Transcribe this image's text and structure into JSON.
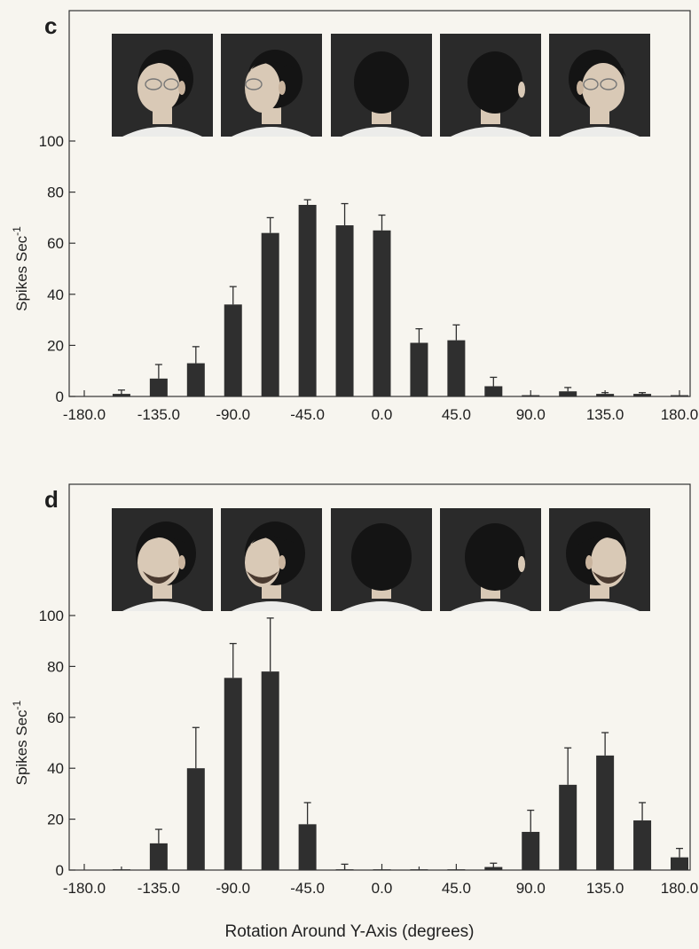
{
  "figure": {
    "xlabel": "Rotation Around Y-Axis (degrees)",
    "colors": {
      "background": "#f7f5ef",
      "bar": "#2f2f2f",
      "axis": "#333333",
      "text": "#1e1e1e",
      "photo_bg": "#2a2a2a",
      "skin": "#d9c9b6",
      "hair": "#141414",
      "shirt": "#ececea"
    }
  },
  "chart_data": [
    {
      "panel_label": "c",
      "type": "bar",
      "ylabel": "Spikes Sec",
      "ylabel_superscript": "-1",
      "ylim": [
        0,
        100
      ],
      "yticks": [
        0,
        20,
        40,
        60,
        80,
        100
      ],
      "xlim": [
        -180,
        180
      ],
      "xticks": [
        -180,
        -135,
        -90,
        -45,
        0,
        45,
        90,
        135,
        180
      ],
      "xtick_labels": [
        "-180.0",
        "-135.0",
        "-90.0",
        "-45.0",
        "0.0",
        "45.0",
        "90.0",
        "135.0",
        "180.0"
      ],
      "x": [
        -157.5,
        -135,
        -112.5,
        -90,
        -67.5,
        -45,
        -22.5,
        0,
        22.5,
        45,
        67.5,
        90,
        112.5,
        135,
        157.5,
        180
      ],
      "values": [
        1,
        7,
        13,
        36,
        64,
        75,
        67,
        65,
        21,
        22,
        4,
        0.5,
        2,
        1,
        1,
        0.5
      ],
      "errors": [
        1.5,
        5.5,
        6.5,
        7,
        6,
        2,
        8.5,
        6,
        5.5,
        6,
        3.5,
        0,
        1.5,
        0.5,
        0.5,
        0
      ],
      "photos": [
        {
          "view": "three-quarter-left",
          "hair": "short",
          "glasses": true
        },
        {
          "view": "profile-left",
          "hair": "short",
          "glasses": true
        },
        {
          "view": "back",
          "hair": "short",
          "glasses": false
        },
        {
          "view": "back-three-quarter",
          "hair": "short",
          "glasses": false
        },
        {
          "view": "three-quarter-right",
          "hair": "short",
          "glasses": true
        }
      ]
    },
    {
      "panel_label": "d",
      "type": "bar",
      "ylabel": "Spikes Sec",
      "ylabel_superscript": "-1",
      "ylim": [
        0,
        100
      ],
      "yticks": [
        0,
        20,
        40,
        60,
        80,
        100
      ],
      "xlim": [
        -180,
        180
      ],
      "xticks": [
        -180,
        -135,
        -90,
        -45,
        0,
        45,
        90,
        135,
        180
      ],
      "xtick_labels": [
        "-180.0",
        "-135.0",
        "-90.0",
        "-45.0",
        "0.0",
        "45.0",
        "90.0",
        "135.0",
        "180.0"
      ],
      "x": [
        -157.5,
        -135,
        -112.5,
        -90,
        -67.5,
        -45,
        -22.5,
        0,
        22.5,
        45,
        67.5,
        90,
        112.5,
        135,
        157.5,
        180
      ],
      "values": [
        0.3,
        10.5,
        40,
        75.5,
        78,
        18,
        0.3,
        0.3,
        0.3,
        0.3,
        1.2,
        15,
        33.5,
        45,
        19.5,
        5
      ],
      "errors": [
        0,
        5.5,
        16,
        13.5,
        21,
        8.5,
        2,
        0,
        0,
        0,
        1.5,
        8.5,
        14.5,
        9,
        7,
        3.5
      ],
      "photos": [
        {
          "view": "three-quarter-left",
          "hair": "shaggy",
          "glasses": false,
          "beard": true
        },
        {
          "view": "profile-left",
          "hair": "shaggy",
          "glasses": false,
          "beard": true
        },
        {
          "view": "back",
          "hair": "shaggy",
          "glasses": false
        },
        {
          "view": "back-three-quarter",
          "hair": "shaggy",
          "glasses": false
        },
        {
          "view": "profile-right",
          "hair": "shaggy",
          "glasses": false,
          "beard": true
        }
      ]
    }
  ]
}
